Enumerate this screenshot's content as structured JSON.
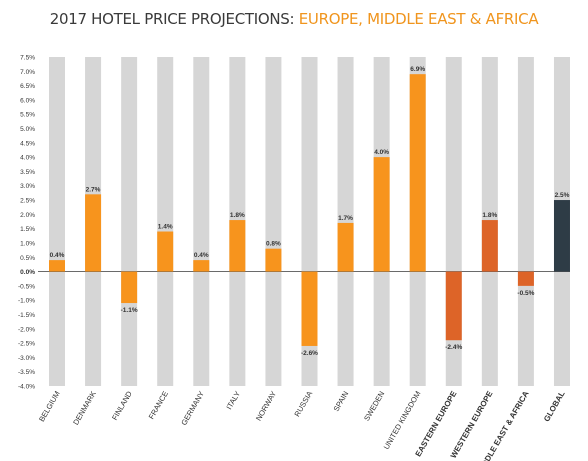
{
  "title": {
    "main": "2017 HOTEL PRICE PROJECTIONS: ",
    "highlight": "EUROPE, MIDDLE EAST & AFRICA"
  },
  "colors": {
    "title_dark": "#3a3a3a",
    "title_accent": "#f0951e",
    "background_bar": "#d6d6d6",
    "country": "#f7941d",
    "region": "#dd6428",
    "global": "#2e3c46",
    "text": "#333333"
  },
  "chart_data": {
    "type": "bar",
    "title": "2017 HOTEL PRICE PROJECTIONS: EUROPE, MIDDLE EAST & AFRICA",
    "ylim": [
      -4.0,
      7.5
    ],
    "yticks": [
      "7.5%",
      "7.0%",
      "6.5%",
      "6.0%",
      "5.5%",
      "5.0%",
      "4.5%",
      "4.0%",
      "3.5%",
      "3.0%",
      "2.5%",
      "2.0%",
      "1.5%",
      "1.0%",
      "0.5%",
      "0.0%",
      "-0.5%",
      "-1.0%",
      "-1.5%",
      "-2.0%",
      "-2.5%",
      "-3.0%",
      "-3.5%",
      "-4.0%"
    ],
    "ytick_values": [
      7.5,
      7.0,
      6.5,
      6.0,
      5.5,
      5.0,
      4.5,
      4.0,
      3.5,
      3.0,
      2.5,
      2.0,
      1.5,
      1.0,
      0.5,
      0.0,
      -0.5,
      -1.0,
      -1.5,
      -2.0,
      -2.5,
      -3.0,
      -3.5,
      -4.0
    ],
    "grid": false,
    "legend": "none",
    "categories": [
      "BELGIUM",
      "DENMARK",
      "FINLAND",
      "FRANCE",
      "GERMANY",
      "ITALY",
      "NORWAY",
      "RUSSIA",
      "SPAIN",
      "SWEDEN",
      "UNITED KINGDOM",
      "EASTERN EUROPE",
      "WESTERN EUROPE",
      "MIDDLE EAST & AFRICA",
      "GLOBAL"
    ],
    "values": [
      0.4,
      2.7,
      -1.1,
      1.4,
      0.4,
      1.8,
      0.8,
      -2.6,
      1.7,
      4.0,
      6.9,
      -2.4,
      1.8,
      -0.5,
      2.5
    ],
    "data_labels": [
      "0.4%",
      "2.7%",
      "-1.1%",
      "1.4%",
      "0.4%",
      "1.8%",
      "0.8%",
      "-2.6%",
      "1.7%",
      "4.0%",
      "6.9%",
      "-2.4%",
      "1.8%",
      "-0.5%",
      "2.5%"
    ],
    "kinds": [
      "country",
      "country",
      "country",
      "country",
      "country",
      "country",
      "country",
      "country",
      "country",
      "country",
      "country",
      "region",
      "region",
      "region",
      "global"
    ]
  }
}
